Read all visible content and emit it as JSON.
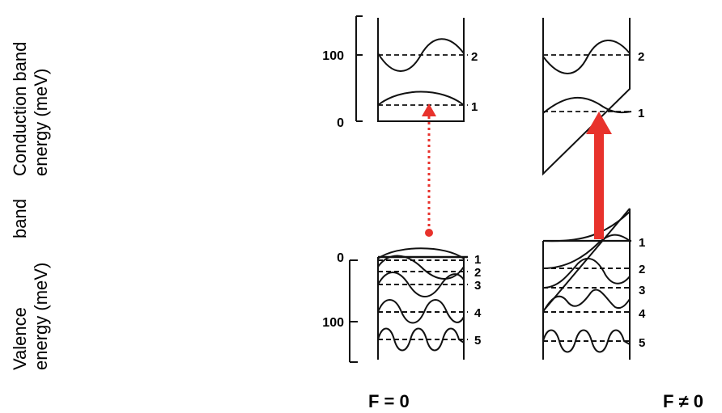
{
  "axis_labels": {
    "conduction_line1": "Conduction band",
    "conduction_line2": "energy (meV)",
    "valence_word1": "Valence",
    "valence_word2": "band",
    "valence_line2": "energy (meV)"
  },
  "conduction_ticks": [
    "100",
    "0"
  ],
  "valence_ticks": [
    "0",
    "100"
  ],
  "panel_zero_field": {
    "caption": "F = 0",
    "conduction_levels": [
      "2",
      "1"
    ],
    "valence_levels": [
      "1",
      "2",
      "3",
      "4",
      "5"
    ]
  },
  "panel_field": {
    "caption": "F ≠ 0",
    "conduction_levels": [
      "2",
      "1"
    ],
    "valence_levels": [
      "1",
      "2",
      "3",
      "4",
      "5"
    ]
  },
  "colors": {
    "transition_arrow": "#e8322c",
    "lines": "#111111"
  }
}
